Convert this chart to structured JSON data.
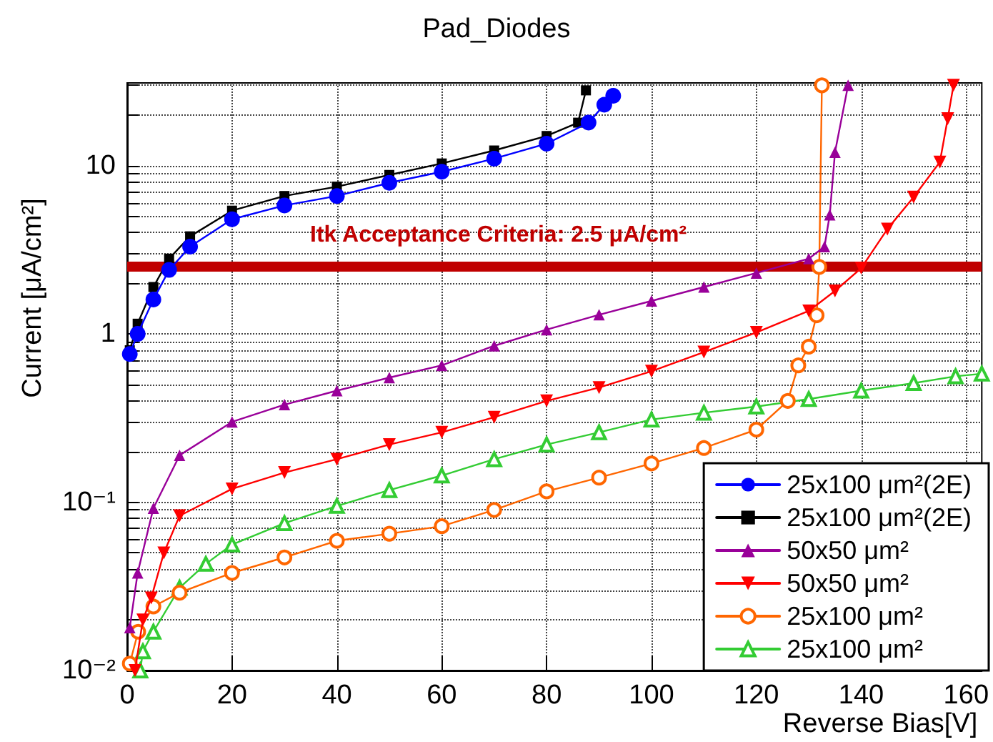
{
  "chart_data": {
    "type": "line",
    "title": "Pad_Diodes",
    "xlabel": "Reverse Bias[V]",
    "ylabel": "Current [μA/cm²]",
    "log": "y",
    "grid": true,
    "legend": "bottom right",
    "xlim": [
      0,
      163
    ],
    "xticks": [
      0,
      20,
      40,
      60,
      80,
      100,
      120,
      140,
      160
    ],
    "ylim": [
      0.01,
      31
    ],
    "yticks": [
      {
        "value": 0.01,
        "label": "10⁻²"
      },
      {
        "value": 0.02,
        "label": null
      },
      {
        "value": 0.03,
        "label": null
      },
      {
        "value": 0.04,
        "label": null
      },
      {
        "value": 0.05,
        "label": null
      },
      {
        "value": 0.06,
        "label": null
      },
      {
        "value": 0.07,
        "label": null
      },
      {
        "value": 0.08,
        "label": null
      },
      {
        "value": 0.09,
        "label": null
      },
      {
        "value": 0.1,
        "label": "10⁻¹"
      },
      {
        "value": 0.2,
        "label": null
      },
      {
        "value": 0.3,
        "label": null
      },
      {
        "value": 0.4,
        "label": null
      },
      {
        "value": 0.5,
        "label": null
      },
      {
        "value": 0.6,
        "label": null
      },
      {
        "value": 0.7,
        "label": null
      },
      {
        "value": 0.8,
        "label": null
      },
      {
        "value": 0.9,
        "label": null
      },
      1,
      {
        "value": 2,
        "label": null
      },
      {
        "value": 3,
        "label": null
      },
      {
        "value": 4,
        "label": null
      },
      {
        "value": 5,
        "label": null
      },
      {
        "value": 6,
        "label": null
      },
      {
        "value": 7,
        "label": null
      },
      {
        "value": 8,
        "label": null
      },
      {
        "value": 9,
        "label": null
      },
      10,
      {
        "value": 20,
        "label": null
      },
      {
        "value": 30,
        "label": null
      }
    ],
    "ref_lines": [
      {
        "axis": "y",
        "value": 2.5,
        "label": "Itk Acceptance Criteria: 2.5 μA/cm²",
        "color": "#c00000"
      }
    ],
    "series": [
      {
        "name": "25x100 μm²(2E)",
        "color": "#0000ff",
        "marker": "circle",
        "x": [
          0.5,
          2,
          5,
          8,
          12,
          20,
          30,
          40,
          50,
          60,
          70,
          80,
          88,
          91,
          92.7
        ],
        "values": [
          0.76,
          1.0,
          1.6,
          2.4,
          3.3,
          4.8,
          5.8,
          6.6,
          7.9,
          9.2,
          11,
          13.5,
          18,
          23,
          26
        ]
      },
      {
        "name": "25x100 μm²(2E)",
        "color": "#000000",
        "marker": "square",
        "x": [
          0.5,
          2,
          5,
          8,
          12,
          20,
          30,
          40,
          50,
          60,
          70,
          80,
          86,
          87.5
        ],
        "values": [
          0.8,
          1.15,
          1.9,
          2.8,
          3.8,
          5.4,
          6.6,
          7.5,
          8.8,
          10.3,
          12.3,
          15,
          18,
          28
        ]
      },
      {
        "name": "50x50 μm²",
        "color": "#990099",
        "marker": "triangle",
        "x": [
          0.5,
          2,
          5,
          10,
          20,
          30,
          40,
          50,
          60,
          70,
          80,
          90,
          100,
          110,
          120,
          130,
          133,
          134,
          135,
          137.5
        ],
        "values": [
          0.018,
          0.038,
          0.092,
          0.19,
          0.3,
          0.38,
          0.46,
          0.55,
          0.65,
          0.85,
          1.06,
          1.3,
          1.57,
          1.9,
          2.3,
          2.8,
          3.3,
          5.1,
          12,
          30
        ]
      },
      {
        "name": "50x50 μm²",
        "color": "#ff0000",
        "marker": "triangle-down",
        "x": [
          1.5,
          3,
          4.6,
          7,
          10,
          20,
          30,
          40,
          50,
          60,
          70,
          80,
          90,
          100,
          110,
          120,
          130,
          135,
          140,
          145,
          150,
          155,
          156.5,
          157.6
        ],
        "values": [
          0.01,
          0.02,
          0.027,
          0.05,
          0.083,
          0.12,
          0.15,
          0.18,
          0.22,
          0.26,
          0.32,
          0.4,
          0.48,
          0.6,
          0.78,
          1.02,
          1.37,
          1.8,
          2.46,
          4.2,
          6.5,
          10.5,
          19,
          30
        ]
      },
      {
        "name": "25x100 μm²",
        "color": "#ff6600",
        "marker": "circle-open",
        "x": [
          0.5,
          2.1,
          5,
          10,
          20,
          30,
          40,
          50,
          60,
          70,
          80,
          90,
          100,
          110,
          120,
          126,
          128,
          130,
          131.5,
          132,
          132.5
        ],
        "values": [
          0.011,
          0.017,
          0.024,
          0.029,
          0.038,
          0.047,
          0.059,
          0.065,
          0.072,
          0.09,
          0.116,
          0.14,
          0.17,
          0.21,
          0.27,
          0.4,
          0.65,
          0.84,
          1.29,
          2.5,
          30
        ]
      },
      {
        "name": "25x100 μm²",
        "color": "#33cc33",
        "marker": "triangle-open",
        "x": [
          2.5,
          3,
          5,
          10,
          15,
          20,
          30,
          40,
          50,
          60,
          70,
          80,
          90,
          100,
          110,
          120,
          130,
          140,
          150,
          158,
          163
        ],
        "values": [
          0.01,
          0.013,
          0.017,
          0.031,
          0.043,
          0.056,
          0.075,
          0.095,
          0.118,
          0.144,
          0.18,
          0.22,
          0.26,
          0.31,
          0.34,
          0.37,
          0.41,
          0.46,
          0.51,
          0.56,
          0.58
        ]
      }
    ]
  }
}
